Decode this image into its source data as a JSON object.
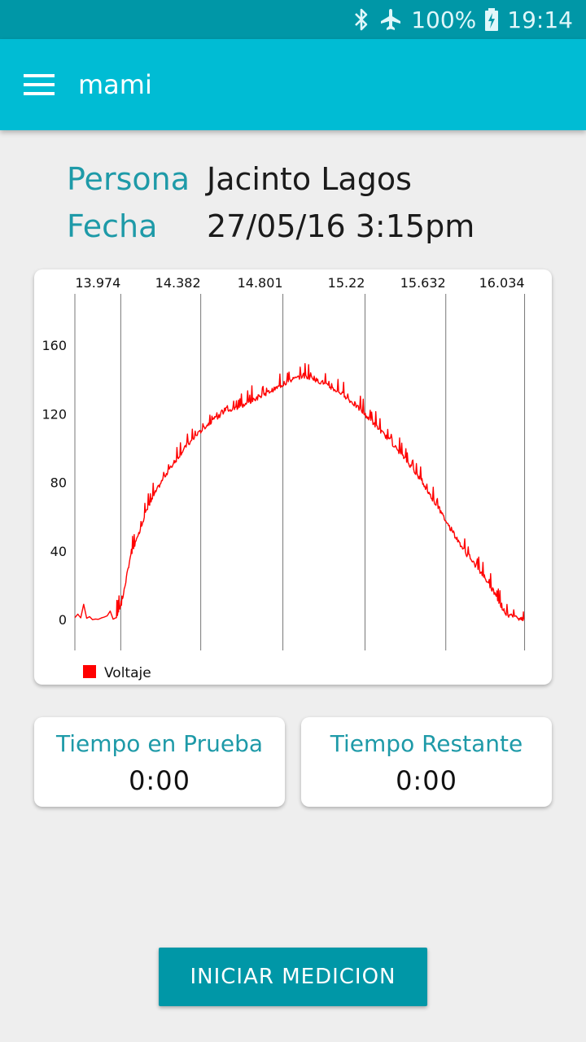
{
  "status_bar": {
    "battery": "100%",
    "time": "19:14",
    "icons": [
      "bluetooth-icon",
      "airplane-mode-icon",
      "battery-charging-icon"
    ]
  },
  "app_bar": {
    "title": "mami",
    "menu_icon": "hamburger-menu-icon"
  },
  "info": {
    "persona_label": "Persona",
    "persona_value": "Jacinto Lagos",
    "fecha_label": "Fecha",
    "fecha_value": "27/05/16 3:15pm"
  },
  "colors": {
    "accent": "#00bcd4",
    "accent_dark": "#0097a7",
    "label_teal": "#1e9aa8",
    "series_red": "#ff0000",
    "background": "#eeeeee"
  },
  "chart_data": {
    "type": "line",
    "title": "",
    "xlabel": "",
    "ylabel": "",
    "x_ticks": [
      "13.974",
      "14.382",
      "14.801",
      "15.22",
      "15.632",
      "16.034"
    ],
    "y_ticks": [
      "0",
      "40",
      "80",
      "120",
      "160"
    ],
    "xlim": [
      13.74,
      16.04
    ],
    "ylim": [
      -18,
      190
    ],
    "x_axis_position": "top",
    "grid": "vertical",
    "legend_placement": "bottom-left",
    "series": [
      {
        "name": "Voltaje",
        "color": "#ff0000",
        "x": [
          13.74,
          13.95,
          13.98,
          14.02,
          14.06,
          14.1,
          14.15,
          14.2,
          14.25,
          14.3,
          14.35,
          14.4,
          14.45,
          14.5,
          14.55,
          14.6,
          14.65,
          14.7,
          14.75,
          14.8,
          14.85,
          14.9,
          14.95,
          15.0,
          15.05,
          15.1,
          15.15,
          15.2,
          15.25,
          15.3,
          15.35,
          15.4,
          15.45,
          15.5,
          15.55,
          15.6,
          15.65,
          15.7,
          15.75,
          15.8,
          15.85,
          15.9,
          15.94,
          16.0,
          16.03
        ],
        "y": [
          1,
          1,
          10,
          35,
          48,
          62,
          74,
          84,
          92,
          100,
          106,
          112,
          117,
          120,
          123,
          125,
          128,
          131,
          134,
          137,
          140,
          142,
          141,
          138,
          135,
          132,
          127,
          122,
          116,
          110,
          104,
          97,
          90,
          82,
          73,
          64,
          54,
          45,
          36,
          29,
          21,
          11,
          3,
          1,
          0
        ]
      }
    ]
  },
  "timers": {
    "test_time_title": "Tiempo en Prueba",
    "test_time_value": "0:00",
    "remaining_title": "Tiempo Restante",
    "remaining_value": "0:00"
  },
  "actions": {
    "start_label": "INICIAR MEDICION"
  }
}
